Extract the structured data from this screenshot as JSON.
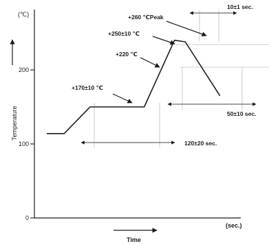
{
  "chart_data": {
    "type": "line",
    "title": "",
    "xlabel": "Time",
    "ylabel": "Temperature",
    "y_unit": "(℃)",
    "x_unit": "(sec.)",
    "y_ticks": [
      {
        "value": 0,
        "label": "0"
      },
      {
        "value": 100,
        "label": "100"
      },
      {
        "value": 200,
        "label": "200"
      }
    ],
    "ylim": [
      0,
      260
    ],
    "xlim": [
      0,
      480
    ],
    "grid": false,
    "legend": "none",
    "series": [
      {
        "x": [
          0,
          40,
          100,
          225,
          295,
          320,
          400
        ],
        "y": [
          114,
          114,
          150,
          150,
          240,
          238,
          165
        ]
      }
    ],
    "annotations": {
      "peak": "+260 ℃Peak",
      "peak_time": "10±1 sec.",
      "t250": "+250±10 ℃",
      "t220": "+220 ℃",
      "preheat": "+170±10 ℃",
      "preheat_time": "120±20 sec.",
      "above_220_time": "50±10 sec."
    }
  }
}
